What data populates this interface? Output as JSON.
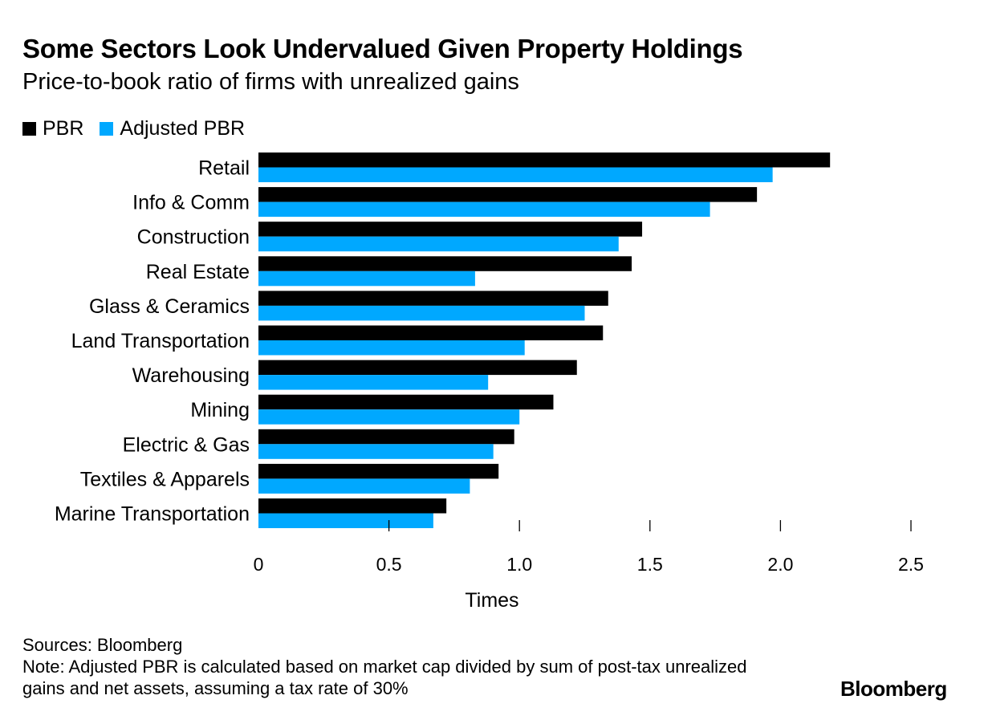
{
  "chart_data": {
    "type": "bar",
    "orientation": "horizontal",
    "title": "Some Sectors Look Undervalued Given Property Holdings",
    "subtitle": "Price-to-book ratio of firms with unrealized gains",
    "xlabel": "Times",
    "ylabel": "",
    "xlim": [
      0,
      2.5
    ],
    "xticks": [
      "0",
      "0.5",
      "1.0",
      "1.5",
      "2.0",
      "2.5"
    ],
    "grid": false,
    "legend_placement": "top-left",
    "categories": [
      "Retail",
      "Info & Comm",
      "Construction",
      "Real Estate",
      "Glass & Ceramics",
      "Land Transportation",
      "Warehousing",
      "Mining",
      "Electric & Gas",
      "Textiles & Apparels",
      "Marine Transportation"
    ],
    "series": [
      {
        "name": "PBR",
        "color": "#000000",
        "values": [
          2.19,
          1.91,
          1.47,
          1.43,
          1.34,
          1.32,
          1.22,
          1.13,
          0.98,
          0.92,
          0.72
        ]
      },
      {
        "name": "Adjusted PBR",
        "color": "#00a8ff",
        "values": [
          1.97,
          1.73,
          1.38,
          0.83,
          1.25,
          1.02,
          0.88,
          1.0,
          0.9,
          0.81,
          0.67
        ]
      }
    ]
  },
  "footer": {
    "sources": "Sources: Bloomberg",
    "note": "Note: Adjusted PBR is calculated based on market cap divided by sum of post-tax unrealized gains and net assets, assuming a tax rate of 30%",
    "logo": "Bloomberg"
  }
}
